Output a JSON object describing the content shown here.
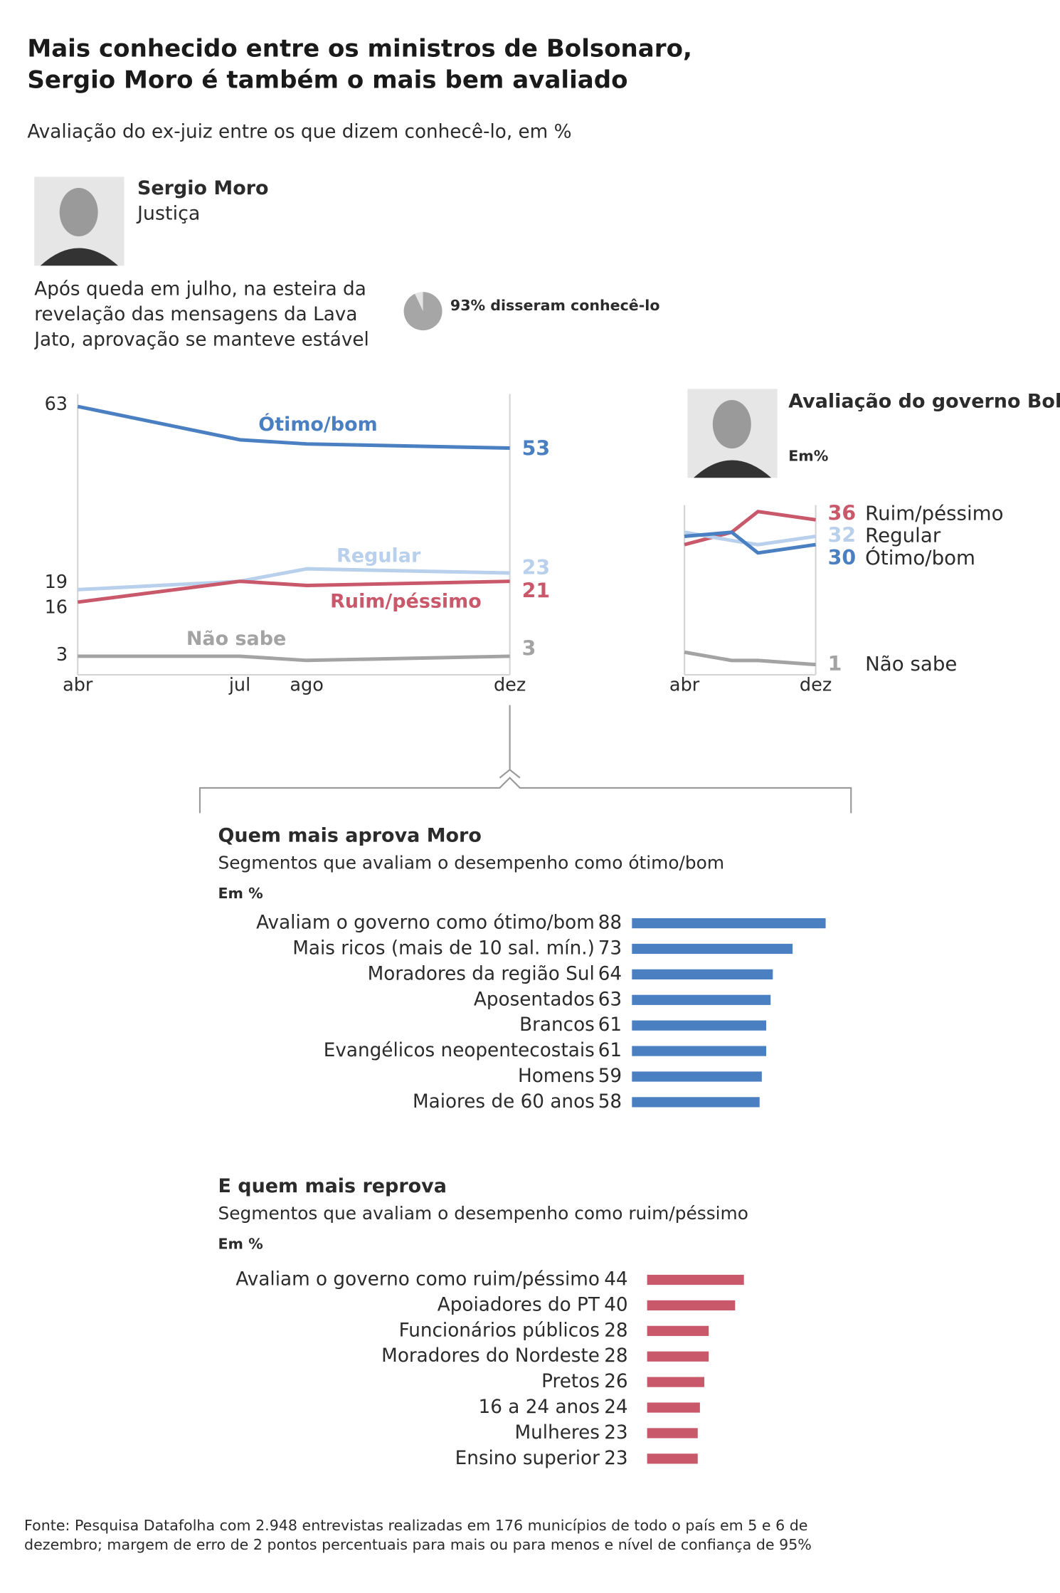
{
  "header": {
    "title": "Mais conhecido entre os ministros de Bolsonaro, Sergio Moro é também o mais bem avaliado",
    "subtitle": "Avaliação do ex-juiz entre os que dizem conhecê-lo, em %"
  },
  "profile": {
    "name": "Sergio Moro",
    "role": "Justiça",
    "note": "Após queda em julho, na esteira da revelação das mensagens da Lava Jato, aprovação se manteve estável"
  },
  "chart_data": [
    {
      "type": "pie",
      "values": [
        93
      ],
      "value_labels": [
        "93% disseram conhecê-lo"
      ],
      "color": "#a6a6a6"
    },
    {
      "type": "line",
      "categories": [
        "abr",
        "jul",
        "ago",
        "dez"
      ],
      "ylim": [
        0,
        66
      ],
      "series": [
        {
          "name": "Ótimo/bom",
          "color": "#4a7fc1",
          "values": [
            63,
            55,
            54,
            53
          ]
        },
        {
          "name": "Regular",
          "color": "#b8d0ec",
          "values": [
            19,
            21,
            24,
            23
          ]
        },
        {
          "name": "Ruim/péssimo",
          "color": "#c8586a",
          "values": [
            16,
            21,
            20,
            21
          ]
        },
        {
          "name": "Não sabe",
          "color": "#a3a3a3",
          "values": [
            3,
            3,
            2,
            3
          ]
        }
      ]
    },
    {
      "type": "line",
      "title": "Avaliação do governo Bolsonaro",
      "subtitle": "Em%",
      "categories": [
        "abr",
        null,
        null,
        "dez"
      ],
      "ylim": [
        0,
        42
      ],
      "series": [
        {
          "name": "Ruim/péssimo",
          "color": "#c8586a",
          "values": [
            30,
            33,
            38,
            36
          ]
        },
        {
          "name": "Regular",
          "color": "#b8d0ec",
          "values": [
            33,
            31,
            30,
            32
          ]
        },
        {
          "name": "Ótimo/bom",
          "color": "#4a7fc1",
          "values": [
            32,
            33,
            28,
            30
          ]
        },
        {
          "name": "Não sabe",
          "color": "#a3a3a3",
          "values": [
            4,
            2,
            2,
            1
          ]
        }
      ]
    },
    {
      "type": "bar",
      "title": "Quem mais aprova Moro",
      "subtitle": "Segmentos que avaliam o desempenho como ótimo/bom",
      "unit": "Em %",
      "xlim": [
        0,
        100
      ],
      "color": "#4a7fc1",
      "categories": [
        "Avaliam o governo como ótimo/bom",
        "Mais ricos (mais de 10 sal. mín.)",
        "Moradores da região Sul",
        "Aposentados",
        "Brancos",
        "Evangélicos neopentecostais",
        "Homens",
        "Maiores de 60 anos"
      ],
      "values": [
        88,
        73,
        64,
        63,
        61,
        61,
        59,
        58
      ]
    },
    {
      "type": "bar",
      "title": "E quem mais reprova",
      "subtitle": "Segmentos que avaliam o desempenho como ruim/péssimo",
      "unit": "Em %",
      "xlim": [
        0,
        100
      ],
      "color": "#c8586a",
      "categories": [
        "Avaliam o governo como ruim/péssimo",
        "Apoiadores do PT",
        "Funcionários públicos",
        "Moradores do Nordeste",
        "Pretos",
        "16 a 24 anos",
        "Mulheres",
        "Ensino superior"
      ],
      "values": [
        44,
        40,
        28,
        28,
        26,
        24,
        23,
        23
      ]
    }
  ],
  "source": "Fonte: Pesquisa Datafolha com 2.948 entrevistas realizadas em 176 municípios de todo o país em 5 e 6 de dezembro; margem de erro de 2 pontos percentuais para mais ou para menos e nível de confiança de 95%"
}
